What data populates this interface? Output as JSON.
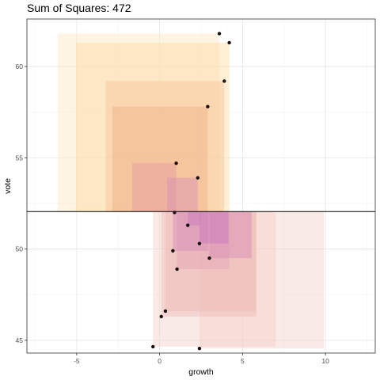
{
  "chart_data": {
    "type": "scatter",
    "title": "Sum of Squares: 472",
    "xlabel": "growth",
    "ylabel": "vote",
    "xlim": [
      -8,
      13
    ],
    "ylim": [
      44.3,
      62.6
    ],
    "x_ticks": [
      -5,
      0,
      5,
      10
    ],
    "y_ticks": [
      45,
      50,
      55,
      60
    ],
    "grid": true,
    "reference_line": {
      "type": "horizontal",
      "y": 52.05
    },
    "points": [
      {
        "x": 3.6,
        "y": 61.8
      },
      {
        "x": 4.2,
        "y": 61.3
      },
      {
        "x": 3.9,
        "y": 59.2
      },
      {
        "x": 2.9,
        "y": 57.8
      },
      {
        "x": 1.0,
        "y": 54.7
      },
      {
        "x": 2.3,
        "y": 53.9
      },
      {
        "x": 0.9,
        "y": 52.0
      },
      {
        "x": 1.7,
        "y": 51.3
      },
      {
        "x": 2.4,
        "y": 50.3
      },
      {
        "x": 0.8,
        "y": 49.9
      },
      {
        "x": 3.0,
        "y": 49.5
      },
      {
        "x": 1.05,
        "y": 48.9
      },
      {
        "x": 0.35,
        "y": 46.6
      },
      {
        "x": 0.1,
        "y": 46.3
      },
      {
        "x": -0.4,
        "y": 44.65
      },
      {
        "x": 2.4,
        "y": 44.55
      }
    ],
    "square_colors": {
      "above": [
        "#fde7c0",
        "#fdd9a0",
        "#f7c49a",
        "#f0b088",
        "#e39aa0",
        "#d990b4"
      ],
      "below": [
        "#f5d0c8",
        "#eebbb5",
        "#e2a1b5",
        "#d58ab8",
        "#c878c0",
        "#b866c8"
      ]
    },
    "colors": {
      "point": "#1a0d0d",
      "line": "#000000",
      "grid": "#e5e5e5",
      "border": "#333333"
    }
  }
}
